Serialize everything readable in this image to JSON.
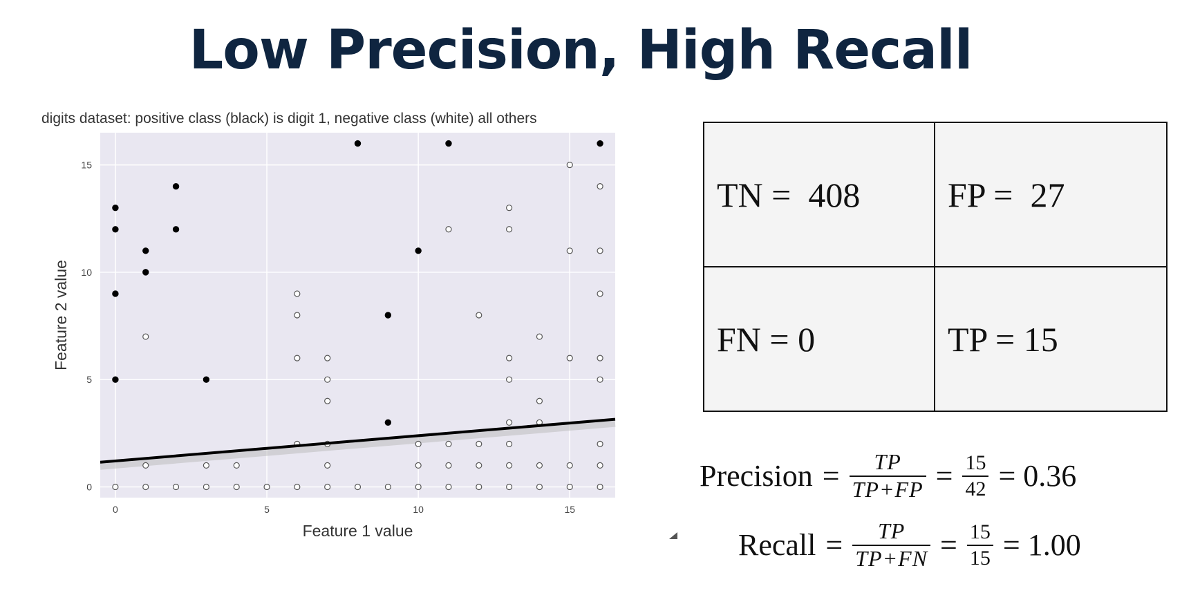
{
  "slide": {
    "title": "Low Precision, High Recall"
  },
  "chart_data": {
    "type": "scatter",
    "title": "digits dataset: positive class (black) is digit 1, negative class (white) all others",
    "xlabel": "Feature 1 value",
    "ylabel": "Feature 2 value",
    "xlim": [
      -0.5,
      16.5
    ],
    "ylim": [
      -0.5,
      16.5
    ],
    "xticks": [
      0,
      5,
      10,
      15
    ],
    "yticks": [
      0,
      5,
      10,
      15
    ],
    "grid": true,
    "background": "#e9e7f1",
    "series": [
      {
        "color": "#000000",
        "marker": "filled-circle",
        "points": [
          [
            0,
            13
          ],
          [
            0,
            12
          ],
          [
            0,
            9
          ],
          [
            0,
            5
          ],
          [
            1,
            11
          ],
          [
            1,
            10
          ],
          [
            2,
            14
          ],
          [
            2,
            12
          ],
          [
            3,
            5
          ],
          [
            8,
            16
          ],
          [
            9,
            8
          ],
          [
            9,
            3
          ],
          [
            10,
            11
          ],
          [
            11,
            16
          ],
          [
            16,
            16
          ]
        ]
      },
      {
        "color": "#ffffff",
        "marker": "open-circle",
        "points": [
          [
            0,
            0
          ],
          [
            1,
            0
          ],
          [
            2,
            0
          ],
          [
            3,
            0
          ],
          [
            4,
            0
          ],
          [
            5,
            0
          ],
          [
            6,
            0
          ],
          [
            7,
            0
          ],
          [
            8,
            0
          ],
          [
            9,
            0
          ],
          [
            10,
            0
          ],
          [
            11,
            0
          ],
          [
            12,
            0
          ],
          [
            13,
            0
          ],
          [
            14,
            0
          ],
          [
            15,
            0
          ],
          [
            16,
            0
          ],
          [
            1,
            1
          ],
          [
            3,
            1
          ],
          [
            4,
            1
          ],
          [
            7,
            1
          ],
          [
            10,
            1
          ],
          [
            11,
            1
          ],
          [
            12,
            1
          ],
          [
            13,
            1
          ],
          [
            14,
            1
          ],
          [
            15,
            1
          ],
          [
            16,
            1
          ],
          [
            6,
            2
          ],
          [
            7,
            2
          ],
          [
            10,
            2
          ],
          [
            11,
            2
          ],
          [
            12,
            2
          ],
          [
            13,
            2
          ],
          [
            16,
            2
          ],
          [
            13,
            3
          ],
          [
            14,
            3
          ],
          [
            7,
            4
          ],
          [
            14,
            4
          ],
          [
            7,
            5
          ],
          [
            13,
            5
          ],
          [
            16,
            5
          ],
          [
            6,
            6
          ],
          [
            7,
            6
          ],
          [
            13,
            6
          ],
          [
            15,
            6
          ],
          [
            16,
            6
          ],
          [
            1,
            7
          ],
          [
            14,
            7
          ],
          [
            6,
            8
          ],
          [
            12,
            8
          ],
          [
            6,
            9
          ],
          [
            16,
            9
          ],
          [
            15,
            11
          ],
          [
            16,
            11
          ],
          [
            11,
            12
          ],
          [
            13,
            12
          ],
          [
            13,
            13
          ],
          [
            16,
            14
          ],
          [
            15,
            15
          ]
        ]
      }
    ],
    "decision_boundary": {
      "color": "#000000",
      "from": [
        -0.5,
        1.15
      ],
      "to": [
        16.5,
        3.15
      ]
    }
  },
  "confusion_matrix": {
    "tn": "TN =  408",
    "fp": "FP =  27",
    "fn": "FN = 0",
    "tp": "TP = 15"
  },
  "formulas": {
    "precision": {
      "label": "Precision",
      "numerator": "TP",
      "denominator": "TP+FP",
      "value_num": "15",
      "value_den": "42",
      "result": "= 0.36"
    },
    "recall": {
      "label": "Recall",
      "numerator": "TP",
      "denominator": "TP+FN",
      "value_num": "15",
      "value_den": "15",
      "result": "= 1.00"
    }
  }
}
